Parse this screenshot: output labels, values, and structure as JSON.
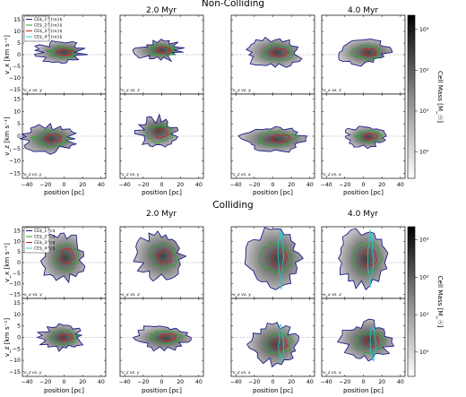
{
  "figure": {
    "sections": [
      {
        "title": "Non-Colliding",
        "time_labels": [
          "2.0 Myr",
          "4.0 Myr"
        ],
        "legend": [
          "CE$_1^{ro}$",
          "CE$_2^{ro}$",
          "CE$_3^{ro}$",
          "CE$_4^{ro}$"
        ],
        "row_ylabels": [
          "v_x [km s⁻¹]",
          "v_z [km s⁻¹]"
        ],
        "panel_labels": [
          [
            "v_x vs. y",
            "v_x vs. z",
            "v_x vs. y",
            "v_x vs. z"
          ],
          [
            "v_z vs. y",
            "v_z vs. y",
            "v_z vs. x",
            "v_z vs. x"
          ]
        ],
        "colorbar_label": "Cell Mass [M_☉]"
      },
      {
        "title": "Colliding",
        "time_labels": [
          "2.0 Myr",
          "4.0 Myr"
        ],
        "legend": [
          "CE$_1^c$",
          "CE$_2^c$",
          "CE$_3^c$",
          "CE$_4^c$"
        ],
        "row_ylabels": [
          "v_x [km s⁻¹]",
          "v_z [km s⁻¹]"
        ],
        "panel_labels": [
          [
            "v_x vs. y",
            "v_x vs. z",
            "v_x vs. y",
            "v_x vs. z"
          ],
          [
            "v_z vs. y",
            "v_z vs. y",
            "v_z vs. x",
            "v_z vs. x"
          ]
        ],
        "colorbar_label": "Cell Mass [M_☉]"
      }
    ],
    "xlabel": "position [pc]",
    "xticks": [
      "−40",
      "−20",
      "0",
      "20",
      "40"
    ],
    "yticks": [
      "15",
      "10",
      "5",
      "0",
      "−5",
      "−10",
      "−15"
    ],
    "colorbar_ticks": [
      "10³",
      "10²",
      "10¹",
      "10⁰"
    ],
    "contour_colors": [
      "#1a1a8c",
      "#22aa22",
      "#cc2222",
      "#22cccc"
    ]
  },
  "chart_data": {
    "type": "heatmap",
    "title": "",
    "xlabel": "position [pc]",
    "ylabel": "v [km s⁻¹]",
    "xlim": [
      -45,
      45
    ],
    "ylim": [
      -17,
      17
    ],
    "color_scale": {
      "type": "log",
      "range": [
        1,
        3000
      ],
      "label": "Cell Mass [M_☉]"
    },
    "series": [
      {
        "name": "CE$_1^{ro}$"
      },
      {
        "name": "CE$_2^{ro}$"
      },
      {
        "name": "CE$_3^{ro}$"
      },
      {
        "name": "CE$_4^{ro}$"
      },
      {
        "name": "CE$_1^c$"
      },
      {
        "name": "CE$_2^c$"
      },
      {
        "name": "CE$_3^c$"
      },
      {
        "name": "CE$_4^c$"
      }
    ]
  }
}
